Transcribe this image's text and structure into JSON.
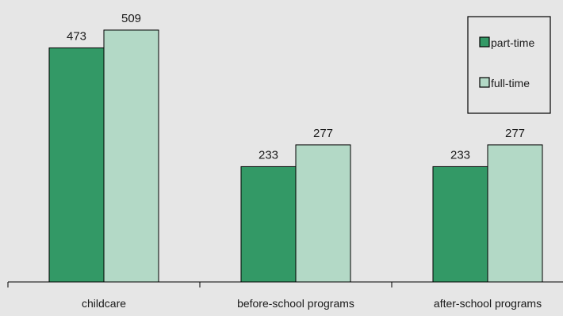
{
  "chart_data": {
    "type": "bar",
    "categories": [
      "childcare",
      "before-school programs",
      "after-school programs"
    ],
    "series": [
      {
        "name": "part-time",
        "values": [
          473,
          233,
          233
        ]
      },
      {
        "name": "full-time",
        "values": [
          509,
          277,
          277
        ]
      }
    ],
    "ylim": [
      0,
      600
    ],
    "grid": false,
    "legend_position": "top-right",
    "colors": {
      "part-time": "#339966",
      "full-time": "#b3d9c6",
      "background": "#e6e6e6",
      "axis": "#000000"
    }
  }
}
